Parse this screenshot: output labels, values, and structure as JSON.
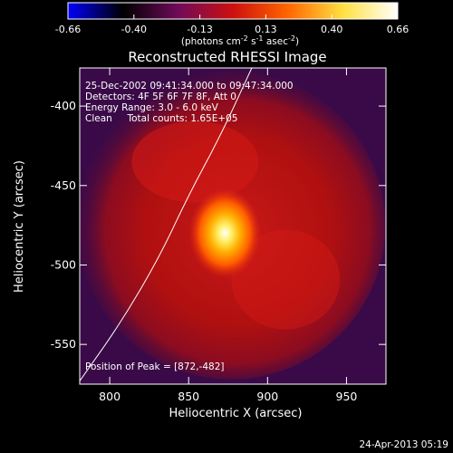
{
  "chart_data": {
    "type": "heatmap",
    "title": "Reconstructed RHESSI Image",
    "xlabel": "Heliocentric X (arcsec)",
    "ylabel": "Heliocentric Y (arcsec)",
    "xlim": [
      781,
      975
    ],
    "ylim": [
      -575,
      -376
    ],
    "x_ticks": [
      800,
      850,
      900,
      950
    ],
    "y_ticks": [
      -550,
      -500,
      -450,
      -400
    ],
    "colorbar": {
      "min": -0.66,
      "max": 0.66,
      "ticks": [
        "-0.66",
        "-0.40",
        "-0.13",
        "0.13",
        "0.40",
        "0.66"
      ],
      "label_main": "(photons cm",
      "label_exp1": "-2",
      "label_mid": " s",
      "label_exp2": "-1",
      "label_tail": " asec",
      "label_exp3": "-2",
      "label_close": ")",
      "colors": [
        "#0000ff",
        "#000000",
        "#6f0a5a",
        "#cc1010",
        "#ff6600",
        "#ffe040",
        "#ffffff"
      ]
    },
    "annotations": [
      "25-Dec-2002 09:41:34.000 to 09:47:34.000",
      "Detectors: 4F 5F 6F 7F 8F, Att 0",
      "Energy Range: 3.0 - 6.0 keV",
      "Clean     Total counts: 1.65E+05"
    ],
    "peak_label": "Position of Peak = [872,-482]",
    "peak": [
      872,
      -482
    ],
    "source_center": [
      873,
      -480
    ],
    "disk_center": [
      877,
      -475
    ],
    "limb_curve": [
      [
        781,
        -573
      ],
      [
        808,
        -535
      ],
      [
        832,
        -494
      ],
      [
        850,
        -456
      ],
      [
        870,
        -419
      ],
      [
        890,
        -376
      ]
    ],
    "footer": "24-Apr-2013 05:19"
  }
}
